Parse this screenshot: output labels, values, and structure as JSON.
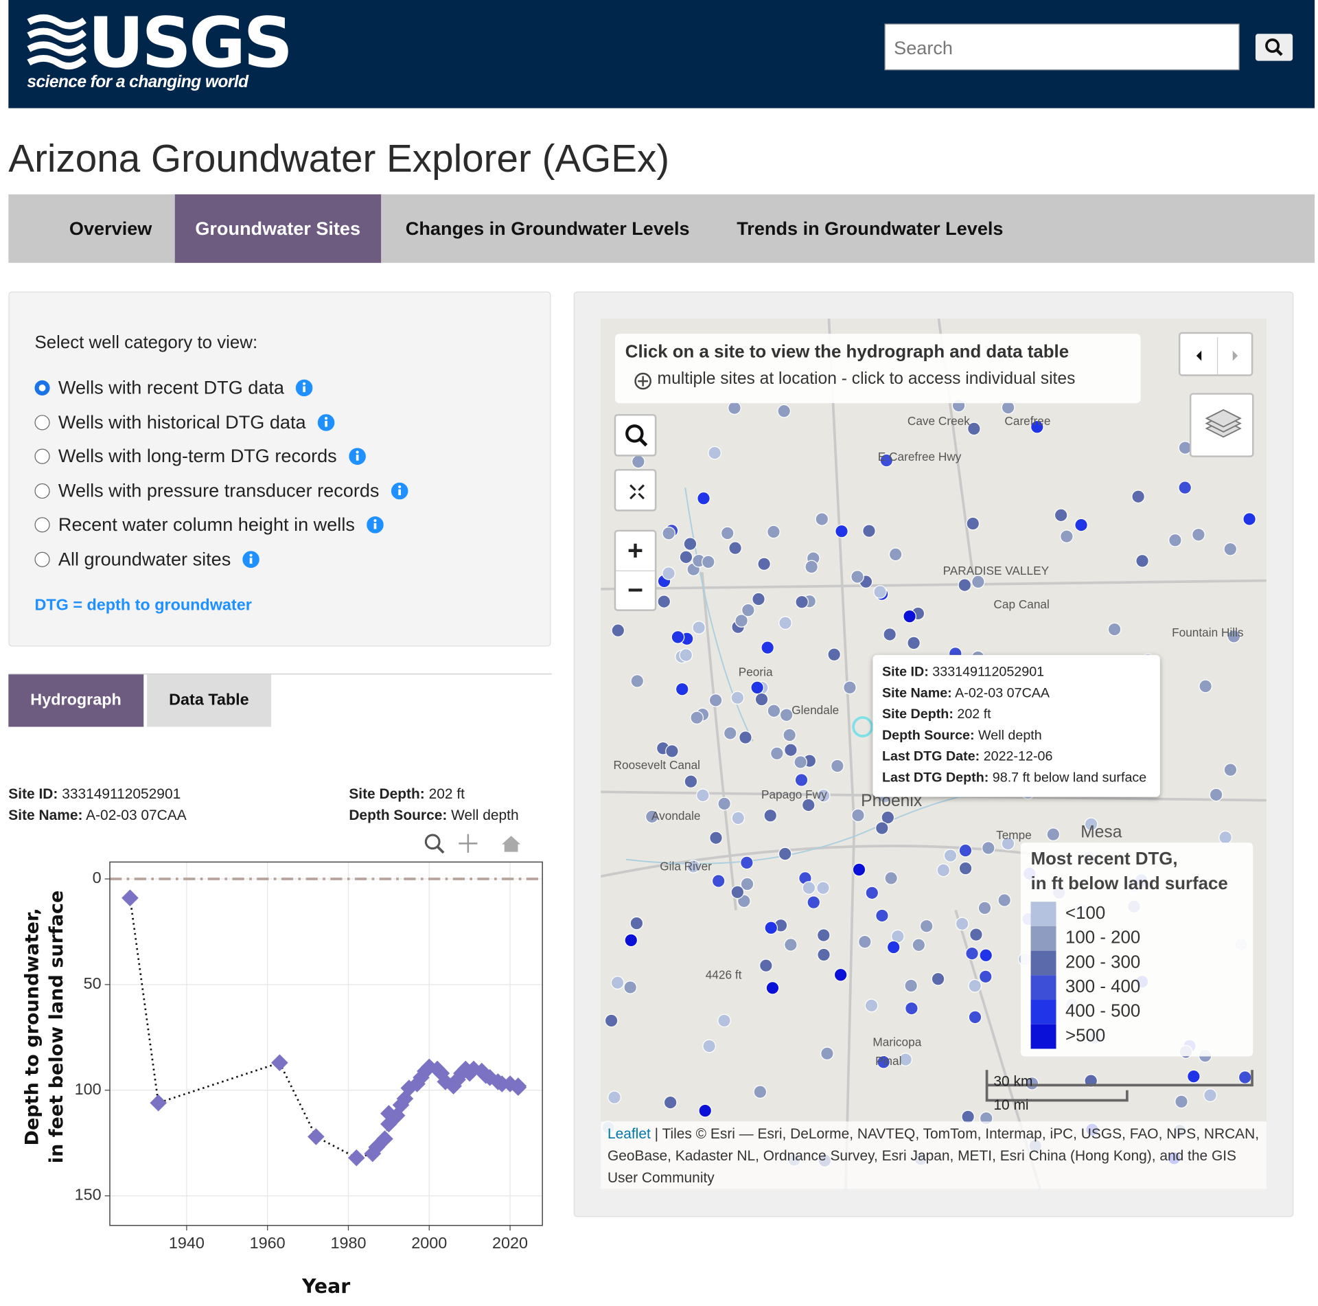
{
  "header": {
    "logo": "USGS",
    "tagline": "science for a changing world",
    "search_placeholder": "Search"
  },
  "title": "Arizona Groundwater Explorer (AGEx)",
  "nav": [
    "Overview",
    "Groundwater Sites",
    "Changes in Groundwater Levels",
    "Trends in Groundwater Levels"
  ],
  "nav_active": 1,
  "selector": {
    "prompt": "Select well category to view:",
    "options": [
      "Wells with recent DTG data",
      "Wells with historical DTG data",
      "Wells with long-term DTG records",
      "Wells with pressure transducer records",
      "Recent water column height in wells",
      "All groundwater sites"
    ],
    "selected": 0,
    "note": "DTG = depth to groundwater"
  },
  "tabs": [
    "Hydrograph",
    "Data Table"
  ],
  "active_tab": 0,
  "site_info": [
    {
      "label": "Site ID:",
      "value": "333149112052901"
    },
    {
      "label": "Site Name:",
      "value": "A-02-03 07CAA"
    },
    {
      "label": "Site Depth:",
      "value": "202 ft"
    },
    {
      "label": "Depth Source:",
      "value": "Well depth"
    }
  ],
  "chart_data": {
    "type": "line",
    "x_label": "Year",
    "y_label": [
      "Depth to groundwater,",
      "in feet below land surface"
    ],
    "x": [
      1926,
      1933,
      1963,
      1972,
      1982,
      1986,
      1987,
      1989,
      1990,
      1990,
      1992,
      1993,
      1994,
      1995,
      1997,
      1998,
      1999,
      2000,
      2002,
      2003,
      2004,
      2006,
      2007,
      2008,
      2009,
      2010,
      2011,
      2013,
      2014,
      2015,
      2017,
      2018,
      2020,
      2022,
      2022
    ],
    "y": [
      9,
      106,
      87,
      122,
      132,
      130,
      127,
      123,
      116,
      111,
      112,
      107,
      104,
      99,
      97,
      94,
      91,
      89,
      90,
      92,
      96,
      98,
      95,
      92,
      90,
      92,
      90,
      91,
      93,
      94,
      96,
      97,
      97,
      98,
      98.7
    ],
    "color": "#7b72c4",
    "line_color": "#111111",
    "xlim": [
      1921,
      2028
    ],
    "ylim": [
      164,
      -8
    ],
    "xticks": [
      1940,
      1960,
      1980,
      2000,
      2020
    ],
    "yticks": [
      0,
      50,
      100,
      150
    ],
    "grid": true,
    "zero_line": true
  },
  "map": {
    "instruction": "Click on a site to view the hydrograph and data table",
    "instruction_note": "multiple sites at location - click to access individual sites",
    "controls": [
      "+",
      "−"
    ],
    "tooltip": [
      {
        "label": "Site ID:",
        "value": "333149112052901"
      },
      {
        "label": "Site Name:",
        "value": "A-02-03 07CAA"
      },
      {
        "label": "Site Depth:",
        "value": "202 ft"
      },
      {
        "label": "Depth Source:",
        "value": "Well depth"
      },
      {
        "label": "Last DTG Date:",
        "value": "2022-12-06"
      },
      {
        "label": "Last DTG Depth:",
        "value": "98.7 ft below land surface"
      }
    ],
    "legend": {
      "title": [
        "Most recent DTG,",
        "in ft below land surface"
      ],
      "items": [
        {
          "label": "<100",
          "color": "#b4c2df"
        },
        {
          "label": "100 - 200",
          "color": "#8d9cc0"
        },
        {
          "label": "200 - 300",
          "color": "#5b6aab"
        },
        {
          "label": "300 - 400",
          "color": "#3c4fd6"
        },
        {
          "label": "400 - 500",
          "color": "#2034e8"
        },
        {
          "label": ">500",
          "color": "#0a10d8"
        }
      ]
    },
    "scale": [
      "30 km",
      "10 mi"
    ],
    "attribution_link": "Leaflet",
    "attribution": "| Tiles © Esri — Esri, DeLorme, NAVTEQ, TomTom, Intermap, iPC, USGS, FAO, NPS, NRCAN, GeoBase, Kadaster NL, Ordnance Survey, Esri Japan, METI, Esri China (Hong Kong), and the GIS User Community",
    "places": [
      "Cave Creek",
      "Carefree",
      "E Carefree Hwy",
      "PARADISE VALLEY",
      "Fountain Hills",
      "Peoria",
      "Glendale",
      "Phoenix",
      "Avondale",
      "Tempe",
      "Mesa",
      "Papago Fwy",
      "Gila River",
      "4426 ft",
      "Maricopa",
      "Pinal",
      "Cap Canal",
      "Roosevelt Canal"
    ]
  }
}
